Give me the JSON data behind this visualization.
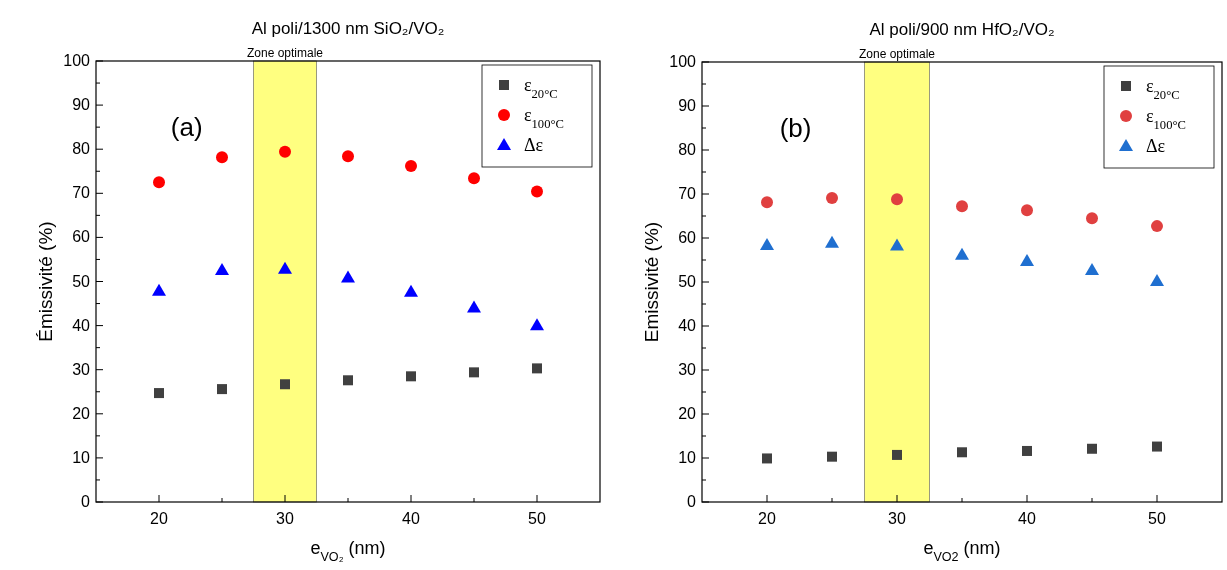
{
  "chart_data": [
    {
      "type": "scatter",
      "title": "Al poli/1300 nm SiO₂/VO₂",
      "xlabel": "e$_{VO₂}$ (nm)",
      "ylabel": "Émissivité (%)",
      "x": [
        20,
        25,
        30,
        35,
        40,
        45,
        50
      ],
      "series": [
        {
          "name": "ε$_{20°C}$",
          "color": "#404040",
          "marker": "square",
          "values": [
            24.7,
            25.6,
            26.7,
            27.6,
            28.5,
            29.4,
            30.3
          ]
        },
        {
          "name": "ε$_{100°C}$",
          "color": "#ff0000",
          "marker": "circle",
          "values": [
            72.5,
            78.2,
            79.4,
            78.4,
            76.2,
            73.4,
            70.4
          ]
        },
        {
          "name": "Δε",
          "color": "#0000ff",
          "marker": "triangle",
          "values": [
            47.9,
            52.6,
            52.9,
            50.9,
            47.7,
            44.1,
            40.1
          ]
        }
      ],
      "xlim": [
        15,
        55
      ],
      "xticks": [
        20,
        {
          "value": 25,
          "label": null
        },
        30,
        {
          "value": 35,
          "label": null
        },
        40,
        {
          "value": 45,
          "label": null
        },
        50
      ],
      "ylim": [
        0,
        100
      ],
      "yticks": [
        0,
        {
          "value": 5,
          "label": null
        },
        10,
        {
          "value": 15,
          "label": null
        },
        20,
        {
          "value": 25,
          "label": null
        },
        30,
        {
          "value": 35,
          "label": null
        },
        40,
        {
          "value": 45,
          "label": null
        },
        50,
        {
          "value": 55,
          "label": null
        },
        60,
        {
          "value": 65,
          "label": null
        },
        70,
        {
          "value": 75,
          "label": null
        },
        80,
        {
          "value": 85,
          "label": null
        },
        90,
        {
          "value": 95,
          "label": null
        },
        100
      ],
      "bands": [
        {
          "axis": "x",
          "from": 27.5,
          "to": 32.5,
          "label": "Zone optimale",
          "color": "#ffff80"
        }
      ],
      "annotations": [
        "(a)"
      ],
      "legend": "top right"
    },
    {
      "type": "scatter",
      "title": "Al poli/900 nm HfO₂/VO₂",
      "xlabel": "e$_{VO2}$ (nm)",
      "ylabel": "Emissivité (%)",
      "x": [
        20,
        25,
        30,
        35,
        40,
        45,
        50
      ],
      "series": [
        {
          "name": "ε$_{20°C}$",
          "color": "#404040",
          "marker": "square",
          "values": [
            9.9,
            10.3,
            10.7,
            11.3,
            11.6,
            12.1,
            12.6
          ]
        },
        {
          "name": "ε$_{100°C}$",
          "color": "#e04040",
          "marker": "circle",
          "values": [
            68.1,
            69.1,
            68.8,
            67.2,
            66.3,
            64.5,
            62.7
          ]
        },
        {
          "name": "Δε",
          "color": "#1f6fd0",
          "marker": "triangle",
          "values": [
            58.4,
            58.9,
            58.3,
            56.2,
            54.8,
            52.7,
            50.2
          ]
        }
      ],
      "xlim": [
        15,
        55
      ],
      "xticks": [
        20,
        {
          "value": 25,
          "label": null
        },
        30,
        {
          "value": 35,
          "label": null
        },
        40,
        {
          "value": 45,
          "label": null
        },
        50
      ],
      "ylim": [
        0,
        100
      ],
      "yticks": [
        0,
        {
          "value": 5,
          "label": null
        },
        10,
        {
          "value": 15,
          "label": null
        },
        20,
        {
          "value": 25,
          "label": null
        },
        30,
        {
          "value": 35,
          "label": null
        },
        40,
        {
          "value": 45,
          "label": null
        },
        50,
        {
          "value": 55,
          "label": null
        },
        60,
        {
          "value": 65,
          "label": null
        },
        70,
        {
          "value": 75,
          "label": null
        },
        80,
        {
          "value": 85,
          "label": null
        },
        90,
        {
          "value": 95,
          "label": null
        },
        100
      ],
      "bands": [
        {
          "axis": "x",
          "from": 27.5,
          "to": 32.5,
          "label": "Zone optimale",
          "color": "#ffff80"
        }
      ],
      "annotations": [
        "(b)"
      ],
      "legend": "top right"
    }
  ]
}
